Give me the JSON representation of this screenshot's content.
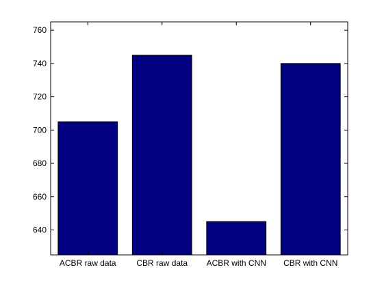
{
  "chart_data": {
    "type": "bar",
    "categories": [
      "ACBR raw data",
      "CBR raw data",
      "ACBR with CNN",
      "CBR with CNN"
    ],
    "values": [
      705,
      745,
      645,
      740
    ],
    "title": "",
    "xlabel": "",
    "ylabel": "",
    "ylim": [
      625,
      765
    ],
    "yticks": [
      640,
      660,
      680,
      700,
      720,
      740,
      760
    ],
    "grid": false,
    "legend": "none",
    "colors": {
      "bar_fill": "#000080",
      "bar_edge": "#000000",
      "axis": "#000000",
      "background": "#ffffff"
    }
  }
}
